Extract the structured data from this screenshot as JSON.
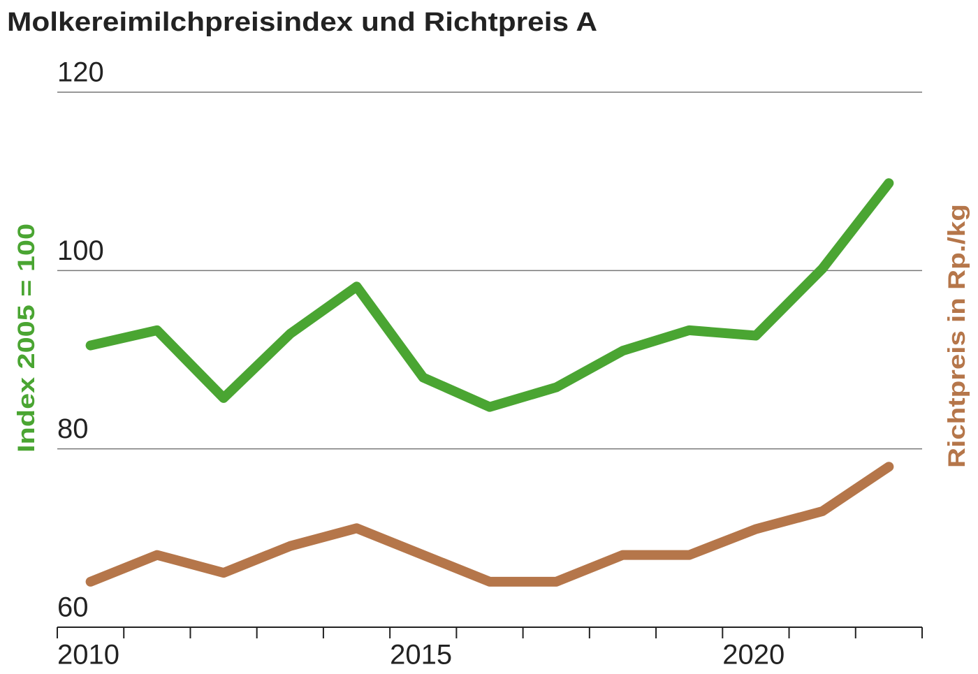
{
  "chart_data": {
    "type": "line",
    "title": "Molkereimilchpreisindex und Richtpreis A",
    "ylabel": "Index 2005 = 100",
    "y2label": "Richtpreis in Rp./kg",
    "categories": [
      "2010",
      null,
      null,
      null,
      null,
      "2015",
      null,
      null,
      null,
      null,
      "2020",
      null,
      null
    ],
    "series": [
      {
        "color": "#4aa532",
        "values": [
          91.6,
          93.3,
          85.7,
          92.9,
          98.2,
          88.0,
          84.7,
          86.9,
          91.0,
          93.3,
          92.7,
          100.2,
          109.8
        ]
      },
      {
        "color": "#b5764a",
        "values": [
          65.1,
          68.1,
          66.1,
          69.1,
          71.1,
          68.1,
          65.1,
          65.1,
          68.1,
          68.1,
          71.0,
          73.0,
          78.0
        ]
      }
    ],
    "ylim": [
      60,
      120
    ],
    "yticks": [
      60,
      80,
      100,
      120
    ],
    "grid": true
  }
}
